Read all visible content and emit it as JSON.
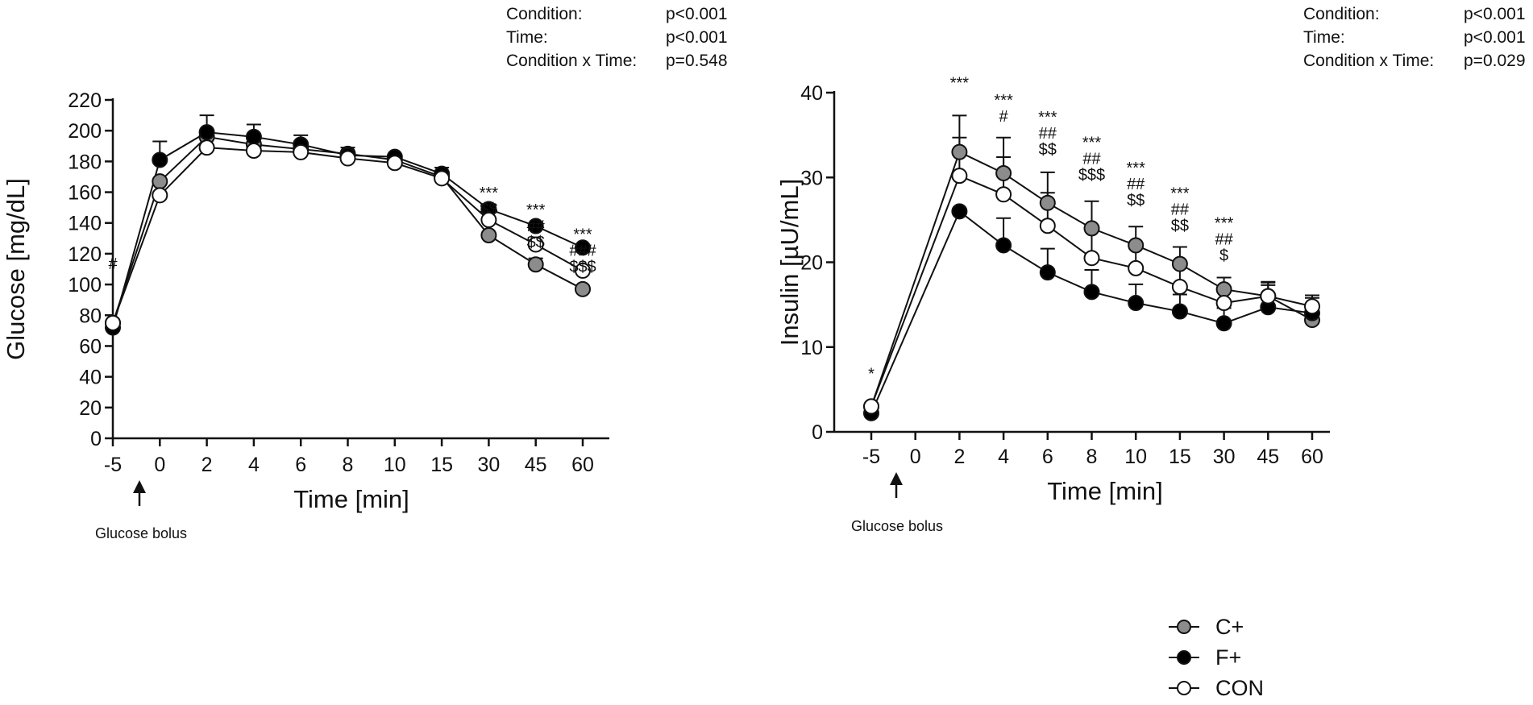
{
  "chart_data": [
    {
      "type": "line",
      "ylabel": "Glucose [mg/dL]",
      "xlabel": "Time [min]",
      "categories": [
        "-5",
        "0",
        "2",
        "4",
        "6",
        "8",
        "10",
        "15",
        "30",
        "45",
        "60"
      ],
      "ylim": [
        0,
        220
      ],
      "yticks": [
        0,
        20,
        40,
        60,
        80,
        100,
        120,
        140,
        160,
        180,
        200,
        220
      ],
      "series": [
        {
          "name": "C+",
          "color": "#8c8c8c",
          "values": [
            75,
            167,
            196,
            191,
            188,
            185,
            181,
            170,
            132,
            113,
            97
          ],
          "errors": [
            0,
            0,
            0,
            0,
            0,
            0,
            0,
            0,
            0,
            4,
            0
          ]
        },
        {
          "name": "F+",
          "color": "#000000",
          "values": [
            72,
            181,
            199,
            196,
            191,
            184,
            183,
            172,
            149,
            138,
            124
          ],
          "errors": [
            0,
            12,
            11,
            8,
            6,
            5,
            0,
            4,
            0,
            0,
            0
          ]
        },
        {
          "name": "CON",
          "color": "#ffffff",
          "values": [
            75,
            158,
            189,
            187,
            186,
            182,
            179,
            169,
            142,
            126,
            109
          ],
          "errors": [
            0,
            0,
            0,
            0,
            0,
            0,
            0,
            0,
            0,
            0,
            0
          ]
        }
      ],
      "significance": [
        {
          "index": 0,
          "y": 110,
          "lines": [
            "#"
          ]
        },
        {
          "index": 8,
          "y": 156,
          "lines": [
            "***",
            "$$"
          ]
        },
        {
          "index": 9,
          "y": 145,
          "lines": [
            "***",
            "##",
            "$$"
          ]
        },
        {
          "index": 10,
          "y": 129,
          "lines": [
            "***",
            "###",
            "$$$"
          ]
        }
      ],
      "stats": [
        {
          "label": "Condition:",
          "value": "p<0.001"
        },
        {
          "label": "Time:",
          "value": "p<0.001"
        },
        {
          "label": "Condition x Time:",
          "value": "p=0.548"
        }
      ],
      "annotation": "Glucose bolus"
    },
    {
      "type": "line",
      "ylabel": "Insulin [µU/mL]",
      "xlabel": "Time [min]",
      "categories": [
        "-5",
        "0",
        "2",
        "4",
        "6",
        "8",
        "10",
        "15",
        "30",
        "45",
        "60"
      ],
      "ylim": [
        0,
        40
      ],
      "yticks": [
        0,
        10,
        20,
        30,
        40
      ],
      "series": [
        {
          "name": "C+",
          "color": "#8c8c8c",
          "values": [
            3.0,
            null,
            33.0,
            30.5,
            27.0,
            24.0,
            22.0,
            19.8,
            16.8,
            16.0,
            13.2
          ],
          "errors": [
            0,
            0,
            4.3,
            4.2,
            3.6,
            3.2,
            2.2,
            2.0,
            1.4,
            1.6,
            0
          ]
        },
        {
          "name": "F+",
          "color": "#000000",
          "values": [
            2.2,
            null,
            26.0,
            22.0,
            18.8,
            16.5,
            15.2,
            14.2,
            12.8,
            14.7,
            14.0
          ],
          "errors": [
            0,
            0,
            0,
            3.2,
            2.8,
            2.6,
            2.2,
            2.0,
            1.8,
            2.6,
            1.8
          ]
        },
        {
          "name": "CON",
          "color": "#ffffff",
          "values": [
            3.0,
            null,
            30.2,
            28.0,
            24.3,
            20.5,
            19.3,
            17.1,
            15.2,
            16.0,
            14.8
          ],
          "errors": [
            0,
            0,
            4.5,
            4.4,
            3.9,
            3.6,
            2.9,
            2.3,
            1.9,
            1.7,
            1.3
          ]
        }
      ],
      "significance": [
        {
          "index": 0,
          "y": 6.2,
          "lines": [
            "*"
          ]
        },
        {
          "index": 2,
          "y": 40.5,
          "lines": [
            "***"
          ]
        },
        {
          "index": 3,
          "y": 38.5,
          "lines": [
            "***",
            "#"
          ]
        },
        {
          "index": 4,
          "y": 36.5,
          "lines": [
            "***",
            "##",
            "$$"
          ]
        },
        {
          "index": 5,
          "y": 33.5,
          "lines": [
            "***",
            "##",
            "$$$"
          ]
        },
        {
          "index": 6,
          "y": 30.5,
          "lines": [
            "***",
            "##",
            "$$"
          ]
        },
        {
          "index": 7,
          "y": 27.5,
          "lines": [
            "***",
            "##",
            "$$"
          ]
        },
        {
          "index": 8,
          "y": 24.0,
          "lines": [
            "***",
            "##",
            "$"
          ]
        }
      ],
      "stats": [
        {
          "label": "Condition:",
          "value": "p<0.001"
        },
        {
          "label": "Time:",
          "value": "p<0.001"
        },
        {
          "label": "Condition x Time:",
          "value": "p=0.029"
        }
      ],
      "annotation": "Glucose bolus"
    }
  ],
  "legend": {
    "items": [
      {
        "name": "C+",
        "color": "#8c8c8c"
      },
      {
        "name": "F+",
        "color": "#000000"
      },
      {
        "name": "CON",
        "color": "#ffffff"
      }
    ]
  }
}
